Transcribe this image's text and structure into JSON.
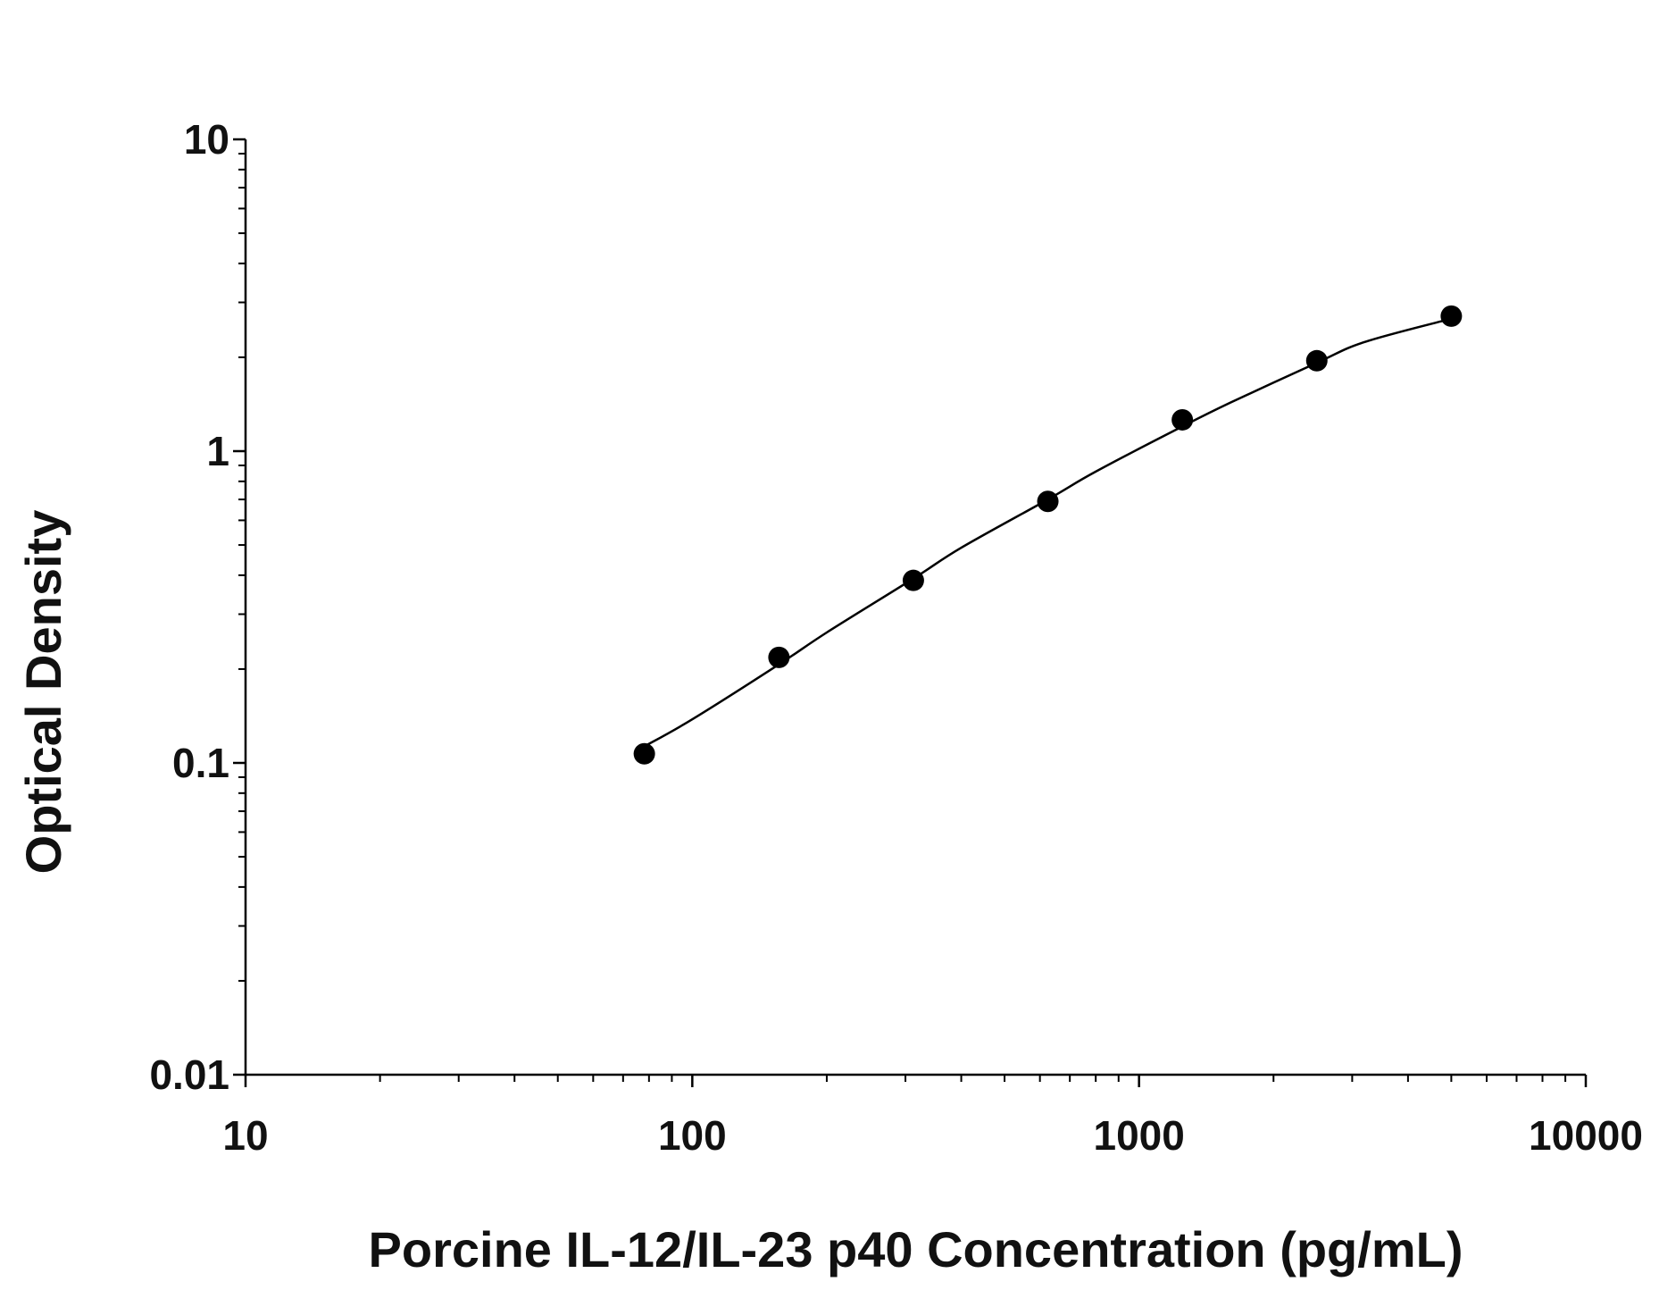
{
  "chart_data": {
    "type": "scatter",
    "title": "",
    "xlabel": "Porcine IL-12/IL-23 p40 Concentration (pg/mL)",
    "ylabel": "Optical Density",
    "x_scale": "log",
    "y_scale": "log",
    "xlim": [
      10,
      10000
    ],
    "ylim": [
      0.01,
      10
    ],
    "x_ticks": [
      {
        "value": 10,
        "label": "10"
      },
      {
        "value": 100,
        "label": "100"
      },
      {
        "value": 1000,
        "label": "1000"
      },
      {
        "value": 10000,
        "label": "10000"
      }
    ],
    "y_ticks": [
      {
        "value": 0.01,
        "label": "0.01"
      },
      {
        "value": 0.1,
        "label": "0.1"
      },
      {
        "value": 1,
        "label": "1"
      },
      {
        "value": 10,
        "label": "10"
      }
    ],
    "grid": false,
    "legend": "none",
    "series": [
      {
        "x": [
          78.1,
          156.3,
          312.5,
          625,
          1250,
          2500,
          5000
        ],
        "y": [
          0.107,
          0.218,
          0.385,
          0.69,
          1.26,
          1.95,
          2.71
        ],
        "marker": "circle",
        "color": "#000000"
      }
    ],
    "fit_curve": {
      "x": [
        78.1,
        100,
        156.3,
        200,
        312.5,
        400,
        625,
        800,
        1250,
        1600,
        2500,
        3200,
        5000
      ],
      "y": [
        0.113,
        0.138,
        0.207,
        0.262,
        0.39,
        0.49,
        0.7,
        0.86,
        1.2,
        1.43,
        1.92,
        2.24,
        2.66
      ],
      "color": "#000000"
    }
  }
}
